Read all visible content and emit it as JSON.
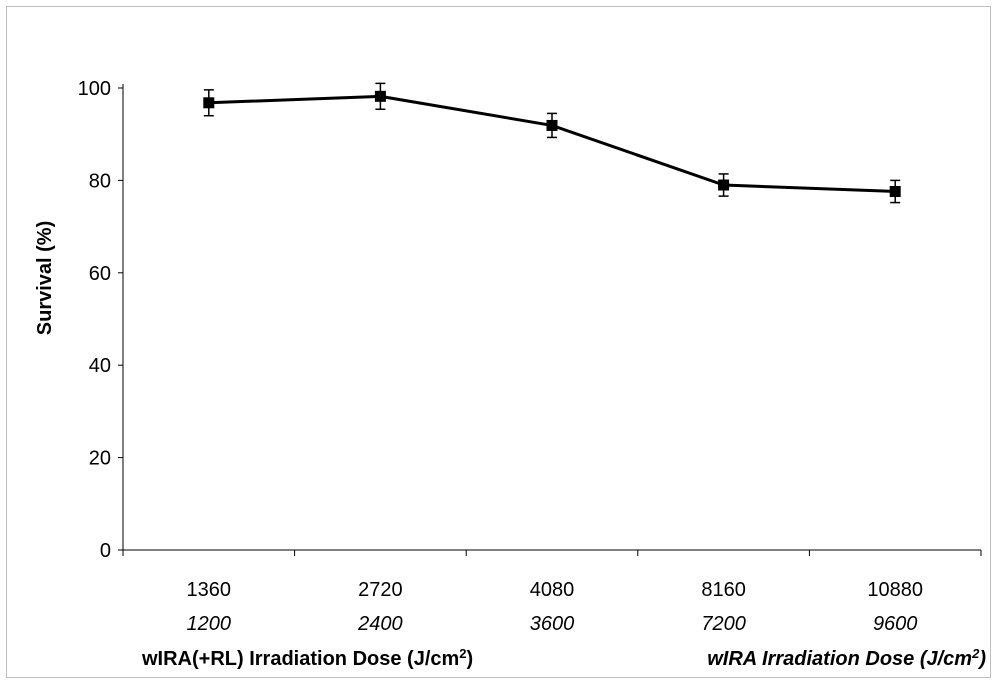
{
  "chart_data": {
    "type": "line",
    "title": "",
    "ylabel": "Survival (%)",
    "xlabel_primary": {
      "main": "wIRA(+RL) Irradiation Dose (J/cm",
      "sup": "2",
      "close": ")"
    },
    "xlabel_secondary": {
      "main": "wIRA Irradiation Dose (J/cm",
      "sup": "2",
      "close": ")"
    },
    "categories": [
      "1360",
      "2720",
      "4080",
      "8160",
      "10880"
    ],
    "categories_secondary": [
      "1200",
      "2400",
      "3600",
      "7200",
      "9600"
    ],
    "ylim": [
      0,
      100
    ],
    "y_ticks": [
      "0",
      "20",
      "40",
      "60",
      "80",
      "100"
    ],
    "grid": false,
    "legend": "none",
    "series": [
      {
        "values": [
          96.8,
          98.2,
          91.9,
          79.0,
          77.6
        ],
        "error": [
          2.8,
          2.8,
          2.6,
          2.4,
          2.4
        ],
        "color": "#000000",
        "marker": "square"
      }
    ]
  }
}
